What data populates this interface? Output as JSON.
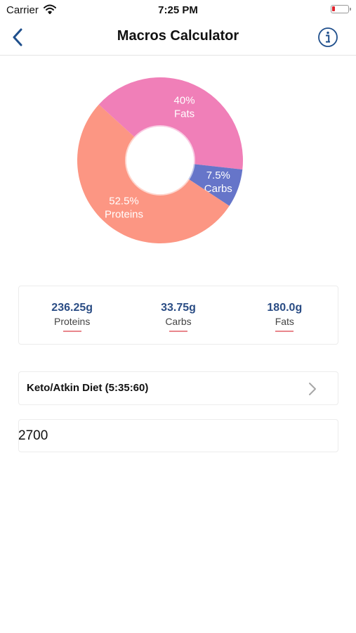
{
  "status_bar": {
    "carrier": "Carrier",
    "time": "7:25 PM",
    "battery_level": 0.2,
    "battery_color": "#e0242e"
  },
  "nav": {
    "title": "Macros Calculator",
    "back_icon": "chevron-left-icon",
    "info_icon": "info-icon"
  },
  "chart_data": {
    "type": "pie",
    "slices": [
      {
        "name": "Fats",
        "label": "Fats",
        "value": 40,
        "value_label": "40%",
        "color": "#f07fb8"
      },
      {
        "name": "Carbs",
        "label": "Carbs",
        "value": 7.5,
        "value_label": "7.5%",
        "color": "#6675c9"
      },
      {
        "name": "Proteins",
        "label": "Proteins",
        "value": 52.5,
        "value_label": "52.5%",
        "color": "#fc9683"
      }
    ],
    "title": "",
    "legend": "none"
  },
  "summary": {
    "items": [
      {
        "value": "236.25g",
        "label": "Proteins"
      },
      {
        "value": "33.75g",
        "label": "Carbs"
      },
      {
        "value": "180.0g",
        "label": "Fats"
      }
    ],
    "value_color": "#2a4c84",
    "underline_color": "#e9868c"
  },
  "diet": {
    "label": "Keto/Atkin Diet (5:35:60)",
    "chevron_icon": "chevron-right-icon"
  },
  "calories": {
    "value": "2700"
  }
}
